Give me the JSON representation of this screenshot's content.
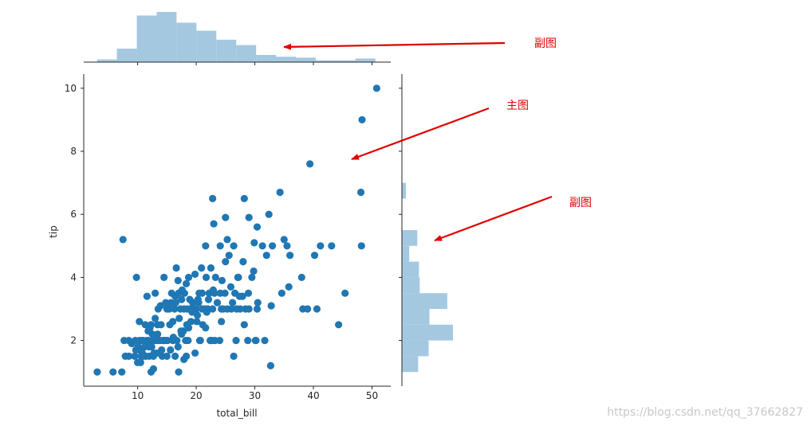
{
  "chart_data": {
    "type": "scatter",
    "subtype": "jointplot",
    "xlabel": "total_bill",
    "ylabel": "tip",
    "xlim": [
      0.8,
      53.2
    ],
    "ylim": [
      0.55,
      10.45
    ],
    "x_ticks": [
      10,
      20,
      30,
      40,
      50
    ],
    "y_ticks": [
      2,
      4,
      6,
      8,
      10
    ],
    "point_color": "#1f77b4",
    "hist_color": "#a4c8e0",
    "points": [
      [
        3.1,
        1.0
      ],
      [
        5.8,
        1.0
      ],
      [
        7.3,
        1.0
      ],
      [
        12.3,
        1.0
      ],
      [
        12.7,
        1.1
      ],
      [
        17.0,
        1.0
      ],
      [
        17.9,
        1.4
      ],
      [
        18.3,
        1.5
      ],
      [
        26.4,
        1.5
      ],
      [
        32.7,
        1.2
      ],
      [
        7.5,
        5.2
      ],
      [
        7.7,
        2.0
      ],
      [
        7.9,
        1.5
      ],
      [
        8.5,
        2.0
      ],
      [
        8.5,
        1.5
      ],
      [
        9.0,
        1.9
      ],
      [
        9.5,
        1.5
      ],
      [
        9.7,
        1.7
      ],
      [
        9.8,
        4.0
      ],
      [
        10.0,
        1.3
      ],
      [
        10.1,
        1.8
      ],
      [
        10.3,
        1.7
      ],
      [
        10.3,
        2.0
      ],
      [
        10.3,
        2.6
      ],
      [
        10.5,
        1.3
      ],
      [
        10.6,
        1.5
      ],
      [
        10.7,
        2.0
      ],
      [
        11.0,
        1.5
      ],
      [
        11.0,
        2.0
      ],
      [
        11.2,
        1.8
      ],
      [
        11.3,
        2.5
      ],
      [
        11.4,
        1.5
      ],
      [
        11.6,
        2.0
      ],
      [
        11.6,
        3.4
      ],
      [
        11.8,
        2.0
      ],
      [
        12.0,
        2.3
      ],
      [
        12.0,
        1.5
      ],
      [
        12.3,
        2.5
      ],
      [
        12.4,
        1.8
      ],
      [
        12.5,
        2.0
      ],
      [
        12.5,
        2.2
      ],
      [
        12.7,
        1.5
      ],
      [
        13.0,
        2.0
      ],
      [
        13.0,
        2.7
      ],
      [
        13.0,
        3.5
      ],
      [
        13.3,
        1.6
      ],
      [
        13.4,
        2.5
      ],
      [
        13.4,
        2.0
      ],
      [
        13.5,
        3.0
      ],
      [
        13.8,
        2.0
      ],
      [
        13.9,
        3.1
      ],
      [
        14.0,
        2.5
      ],
      [
        14.1,
        1.7
      ],
      [
        14.3,
        2.0
      ],
      [
        14.5,
        4.0
      ],
      [
        14.5,
        2.0
      ],
      [
        14.8,
        3.2
      ],
      [
        15.0,
        1.5
      ],
      [
        15.0,
        3.0
      ],
      [
        15.1,
        2.0
      ],
      [
        15.4,
        3.0
      ],
      [
        15.5,
        2.5
      ],
      [
        15.7,
        3.2
      ],
      [
        15.8,
        3.5
      ],
      [
        16.0,
        2.0
      ],
      [
        16.0,
        2.6
      ],
      [
        16.3,
        3.0
      ],
      [
        16.4,
        1.5
      ],
      [
        16.5,
        3.2
      ],
      [
        16.6,
        4.3
      ],
      [
        16.7,
        2.0
      ],
      [
        16.9,
        3.9
      ],
      [
        17.0,
        3.5
      ],
      [
        17.1,
        2.7
      ],
      [
        17.3,
        3.0
      ],
      [
        17.5,
        2.2
      ],
      [
        17.5,
        3.3
      ],
      [
        17.8,
        2.3
      ],
      [
        17.9,
        3.0
      ],
      [
        18.0,
        3.5
      ],
      [
        18.2,
        2.0
      ],
      [
        18.3,
        3.8
      ],
      [
        18.4,
        2.5
      ],
      [
        18.5,
        3.0
      ],
      [
        18.7,
        4.0
      ],
      [
        19.0,
        3.0
      ],
      [
        19.1,
        2.6
      ],
      [
        19.4,
        3.2
      ],
      [
        19.7,
        3.0
      ],
      [
        19.8,
        1.6
      ],
      [
        20.0,
        3.0
      ],
      [
        20.2,
        2.8
      ],
      [
        20.3,
        3.3
      ],
      [
        20.5,
        3.5
      ],
      [
        20.7,
        2.0
      ],
      [
        20.9,
        4.3
      ],
      [
        21.0,
        3.0
      ],
      [
        21.0,
        3.5
      ],
      [
        21.1,
        2.5
      ],
      [
        21.5,
        3.0
      ],
      [
        21.7,
        4.0
      ],
      [
        22.0,
        3.0
      ],
      [
        22.1,
        3.3
      ],
      [
        22.2,
        3.5
      ],
      [
        22.4,
        2.0
      ],
      [
        22.5,
        4.3
      ],
      [
        22.7,
        2.0
      ],
      [
        22.8,
        3.0
      ],
      [
        23.1,
        3.5
      ],
      [
        23.3,
        4.0
      ],
      [
        23.6,
        3.2
      ],
      [
        24.0,
        2.0
      ],
      [
        24.1,
        3.5
      ],
      [
        24.3,
        3.0
      ],
      [
        24.6,
        3.0
      ],
      [
        24.9,
        3.5
      ],
      [
        25.0,
        4.5
      ],
      [
        25.3,
        3.0
      ],
      [
        25.6,
        4.7
      ],
      [
        26.0,
        3.0
      ],
      [
        26.6,
        3.5
      ],
      [
        26.9,
        3.0
      ],
      [
        27.2,
        4.0
      ],
      [
        27.5,
        3.0
      ],
      [
        28.0,
        4.5
      ],
      [
        28.2,
        2.5
      ],
      [
        28.4,
        3.0
      ],
      [
        28.9,
        3.5
      ],
      [
        29.0,
        3.0
      ],
      [
        29.5,
        4.0
      ],
      [
        29.8,
        4.2
      ],
      [
        30.1,
        2.0
      ],
      [
        30.4,
        3.0
      ],
      [
        30.5,
        3.2
      ],
      [
        31.3,
        5.0
      ],
      [
        31.7,
        2.0
      ],
      [
        32.0,
        4.7
      ],
      [
        32.4,
        6.0
      ],
      [
        32.8,
        3.1
      ],
      [
        33.0,
        5.0
      ],
      [
        34.3,
        6.7
      ],
      [
        34.6,
        3.5
      ],
      [
        35.0,
        5.2
      ],
      [
        35.5,
        5.0
      ],
      [
        35.8,
        3.7
      ],
      [
        36.0,
        4.7
      ],
      [
        38.0,
        4.0
      ],
      [
        38.2,
        3.0
      ],
      [
        39.0,
        3.0
      ],
      [
        39.4,
        7.6
      ],
      [
        40.2,
        4.7
      ],
      [
        40.6,
        3.0
      ],
      [
        41.2,
        5.0
      ],
      [
        43.1,
        5.0
      ],
      [
        44.3,
        2.5
      ],
      [
        45.4,
        3.5
      ],
      [
        48.1,
        6.7
      ],
      [
        48.2,
        5.0
      ],
      [
        48.3,
        9.0
      ],
      [
        50.8,
        10.0
      ],
      [
        22.8,
        6.5
      ],
      [
        28.2,
        6.5
      ],
      [
        25.0,
        5.9
      ],
      [
        23.0,
        5.7
      ],
      [
        29.0,
        5.9
      ],
      [
        30.4,
        5.6
      ],
      [
        24.1,
        5.0
      ],
      [
        25.3,
        5.2
      ],
      [
        26.4,
        5.0
      ],
      [
        29.9,
        5.1
      ],
      [
        21.6,
        5.0
      ],
      [
        19.8,
        4.1
      ],
      [
        27.1,
        4.0
      ],
      [
        27.9,
        3.4
      ],
      [
        26.2,
        3.2
      ],
      [
        24.3,
        2.6
      ],
      [
        23.2,
        2.0
      ],
      [
        26.8,
        2.0
      ],
      [
        28.8,
        2.0
      ],
      [
        30.2,
        2.0
      ],
      [
        11.8,
        2.3
      ],
      [
        12.1,
        2.4
      ],
      [
        13.4,
        2.2
      ],
      [
        14.8,
        2.0
      ],
      [
        16.1,
        2.1
      ],
      [
        17.4,
        2.3
      ],
      [
        18.7,
        2.4
      ],
      [
        20.1,
        2.6
      ],
      [
        21.6,
        2.4
      ],
      [
        19.3,
        2.9
      ],
      [
        9.6,
        2.0
      ],
      [
        10.8,
        1.6
      ],
      [
        11.9,
        1.8
      ],
      [
        12.8,
        1.6
      ],
      [
        14.2,
        1.5
      ],
      [
        15.6,
        1.7
      ],
      [
        16.9,
        1.8
      ],
      [
        18.6,
        2.0
      ],
      [
        20.6,
        2.0
      ],
      [
        22.4,
        2.0
      ],
      [
        15.2,
        3.1
      ],
      [
        16.4,
        3.4
      ],
      [
        17.6,
        3.6
      ],
      [
        18.9,
        3.3
      ],
      [
        20.4,
        3.2
      ],
      [
        21.8,
        2.9
      ],
      [
        22.9,
        3.6
      ],
      [
        24.4,
        3.9
      ],
      [
        25.9,
        3.7
      ],
      [
        27.4,
        3.4
      ]
    ],
    "marginal_x": {
      "bin_edges": [
        3.07,
        6.46,
        9.86,
        13.25,
        16.64,
        20.04,
        23.43,
        26.82,
        30.22,
        33.61,
        37.01,
        40.4,
        43.79,
        47.19,
        50.58
      ],
      "counts": [
        3,
        15,
        52,
        56,
        44,
        35,
        25,
        19,
        8,
        6,
        5,
        2,
        2,
        4
      ]
    },
    "marginal_y": {
      "bin_edges": [
        1.0,
        1.5,
        2.0,
        2.5,
        3.0,
        3.5,
        4.0,
        4.5,
        5.0,
        5.5,
        6.0,
        6.5,
        7.0
      ],
      "counts": [
        20,
        33,
        63,
        34,
        56,
        22,
        21,
        9,
        19,
        0,
        0,
        5
      ]
    }
  },
  "annotations": [
    {
      "text": "副图"
    },
    {
      "text": "主图"
    },
    {
      "text": "副图"
    }
  ],
  "annotation_color": "#e00000",
  "watermark": "https://blog.csdn.net/qq_37662827"
}
